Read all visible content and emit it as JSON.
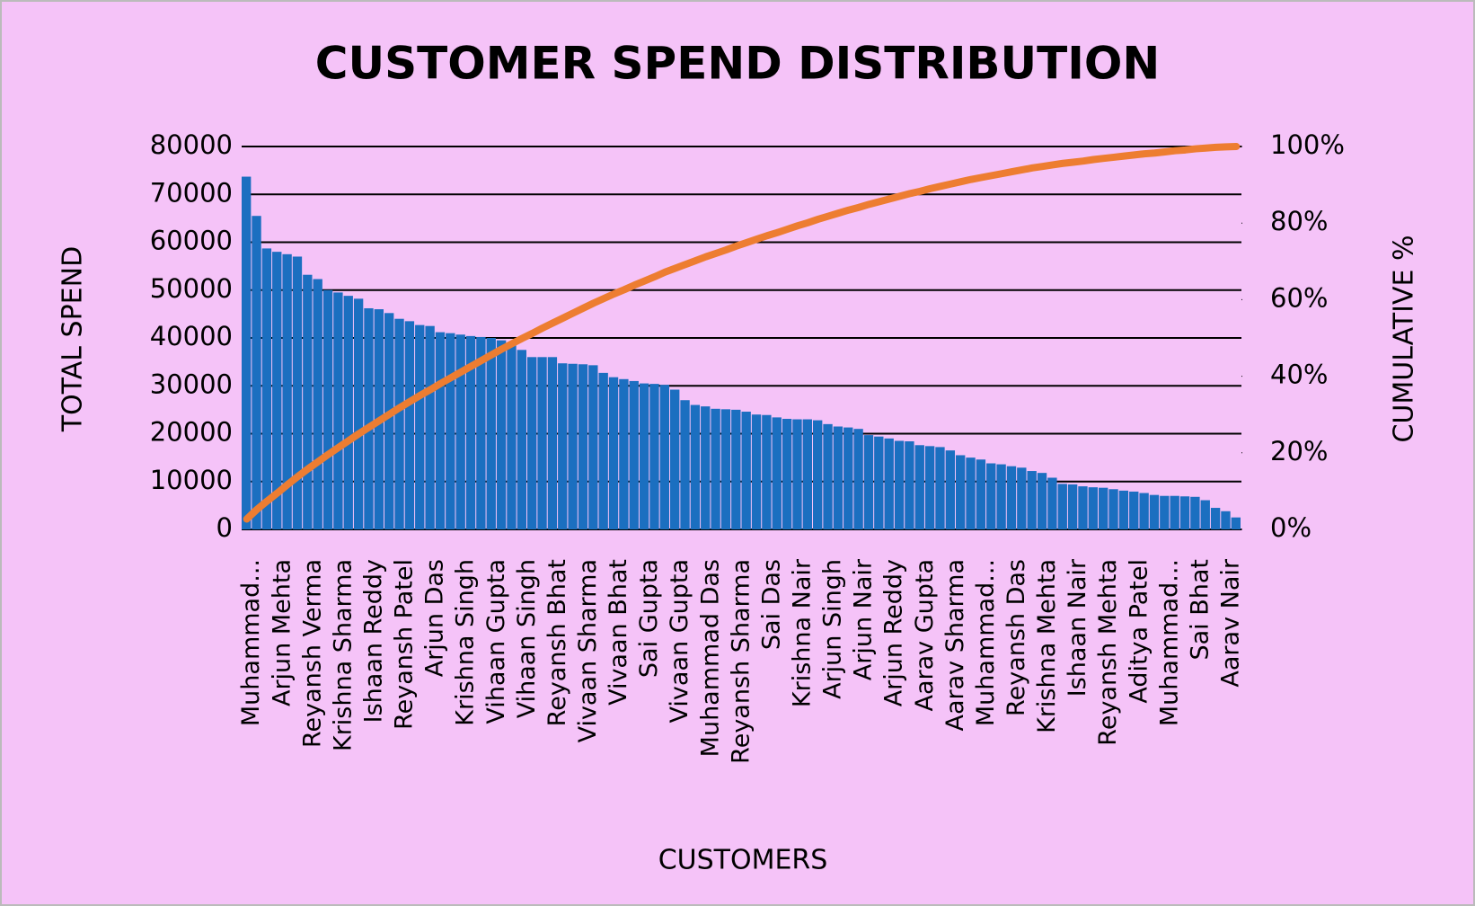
{
  "chart_data": {
    "type": "pareto",
    "title": "CUSTOMER SPEND DISTRIBUTION",
    "x_label": "CUSTOMERS",
    "y_label": "TOTAL SPEND",
    "y2_label": "CUMULATIVE  %",
    "categories": [
      "Muhammad...",
      null,
      null,
      "Arjun Mehta",
      null,
      null,
      "Reyansh Verma",
      null,
      null,
      "Krishna Sharma",
      null,
      null,
      "Ishaan Reddy",
      null,
      null,
      "Reyansh Patel",
      null,
      null,
      "Arjun Das",
      null,
      null,
      "Krishna Singh",
      null,
      null,
      "Vihaan Gupta",
      null,
      null,
      "Vihaan Singh",
      null,
      null,
      "Reyansh Bhat",
      null,
      null,
      "Vivaan Sharma",
      null,
      null,
      "Vivaan Bhat",
      null,
      null,
      "Sai Gupta",
      null,
      null,
      "Vivaan Gupta",
      null,
      null,
      "Muhammad Das",
      null,
      null,
      "Reyansh Sharma",
      null,
      null,
      "Sai Das",
      null,
      null,
      "Krishna Nair",
      null,
      null,
      "Arjun Singh",
      null,
      null,
      "Arjun Nair",
      null,
      null,
      "Arjun Reddy",
      null,
      null,
      "Aarav Gupta",
      null,
      null,
      "Aarav Sharma",
      null,
      null,
      "Muhammad...",
      null,
      null,
      "Reyansh Das",
      null,
      null,
      "Krishna Mehta",
      null,
      null,
      "Ishaan Nair",
      null,
      null,
      "Reyansh Mehta",
      null,
      null,
      "Aditya Patel",
      null,
      null,
      "Muhammad...",
      null,
      null,
      "Sai Bhat",
      null,
      null,
      "Aarav Nair",
      null
    ],
    "series": [
      {
        "type": "bar",
        "color": "#1b6fc0",
        "values": [
          73700,
          65500,
          58700,
          58000,
          57500,
          57000,
          53200,
          52300,
          50000,
          49500,
          48800,
          48200,
          46200,
          46000,
          45200,
          44000,
          43500,
          42700,
          42500,
          41200,
          41000,
          40700,
          40400,
          40200,
          40000,
          39500,
          38800,
          37500,
          36000,
          36000,
          36000,
          34700,
          34600,
          34500,
          34300,
          32700,
          31800,
          31400,
          31000,
          30500,
          30400,
          30200,
          29200,
          27000,
          26000,
          25700,
          25200,
          25100,
          25000,
          24600,
          24000,
          23900,
          23400,
          23100,
          23000,
          23000,
          22800,
          22000,
          21500,
          21300,
          21000,
          19700,
          19400,
          19000,
          18500,
          18400,
          17600,
          17400,
          17200,
          16500,
          15500,
          15000,
          14600,
          13800,
          13600,
          13200,
          12900,
          12200,
          11800,
          10800,
          9500,
          9400,
          9000,
          8800,
          8700,
          8400,
          8100,
          7900,
          7600,
          7200,
          7000,
          7000,
          6900,
          6800,
          6100,
          4500,
          3800,
          2500
        ]
      },
      {
        "type": "line",
        "axis": "y2",
        "color": "#ed7d31",
        "values": [
          2.7,
          5.2,
          7.4,
          9.5,
          11.7,
          13.8,
          15.8,
          17.7,
          19.6,
          21.4,
          23.2,
          25.0,
          26.7,
          28.4,
          30.1,
          31.8,
          33.4,
          35.0,
          36.5,
          38.1,
          39.6,
          41.1,
          42.6,
          44.1,
          45.6,
          47.1,
          48.5,
          49.9,
          51.2,
          52.6,
          53.9,
          55.2,
          56.5,
          57.8,
          59.1,
          60.3,
          61.5,
          62.6,
          63.8,
          64.9,
          66.0,
          67.2,
          68.2,
          69.2,
          70.2,
          71.2,
          72.1,
          73.0,
          74.0,
          74.9,
          75.8,
          76.7,
          77.5,
          78.4,
          79.3,
          80.1,
          81.0,
          81.8,
          82.6,
          83.4,
          84.1,
          84.9,
          85.6,
          86.3,
          87.0,
          87.7,
          88.3,
          89.0,
          89.6,
          90.2,
          90.8,
          91.4,
          91.9,
          92.4,
          92.9,
          93.4,
          93.9,
          94.4,
          94.8,
          95.2,
          95.6,
          95.9,
          96.2,
          96.6,
          96.9,
          97.2,
          97.5,
          97.8,
          98.1,
          98.3,
          98.6,
          98.9,
          99.1,
          99.4,
          99.6,
          99.8,
          99.9,
          100
        ]
      }
    ],
    "ylim": [
      0,
      80000
    ],
    "yticks": [
      0,
      10000,
      20000,
      30000,
      40000,
      50000,
      60000,
      70000,
      80000
    ],
    "y2lim": [
      0,
      100
    ],
    "y2ticks": [
      {
        "value": 0,
        "label": "0%"
      },
      {
        "value": 20,
        "label": "20%"
      },
      {
        "value": 40,
        "label": "40%"
      },
      {
        "value": 60,
        "label": "60%"
      },
      {
        "value": 80,
        "label": "80%"
      },
      {
        "value": 100,
        "label": "100%"
      }
    ],
    "grid": true
  }
}
